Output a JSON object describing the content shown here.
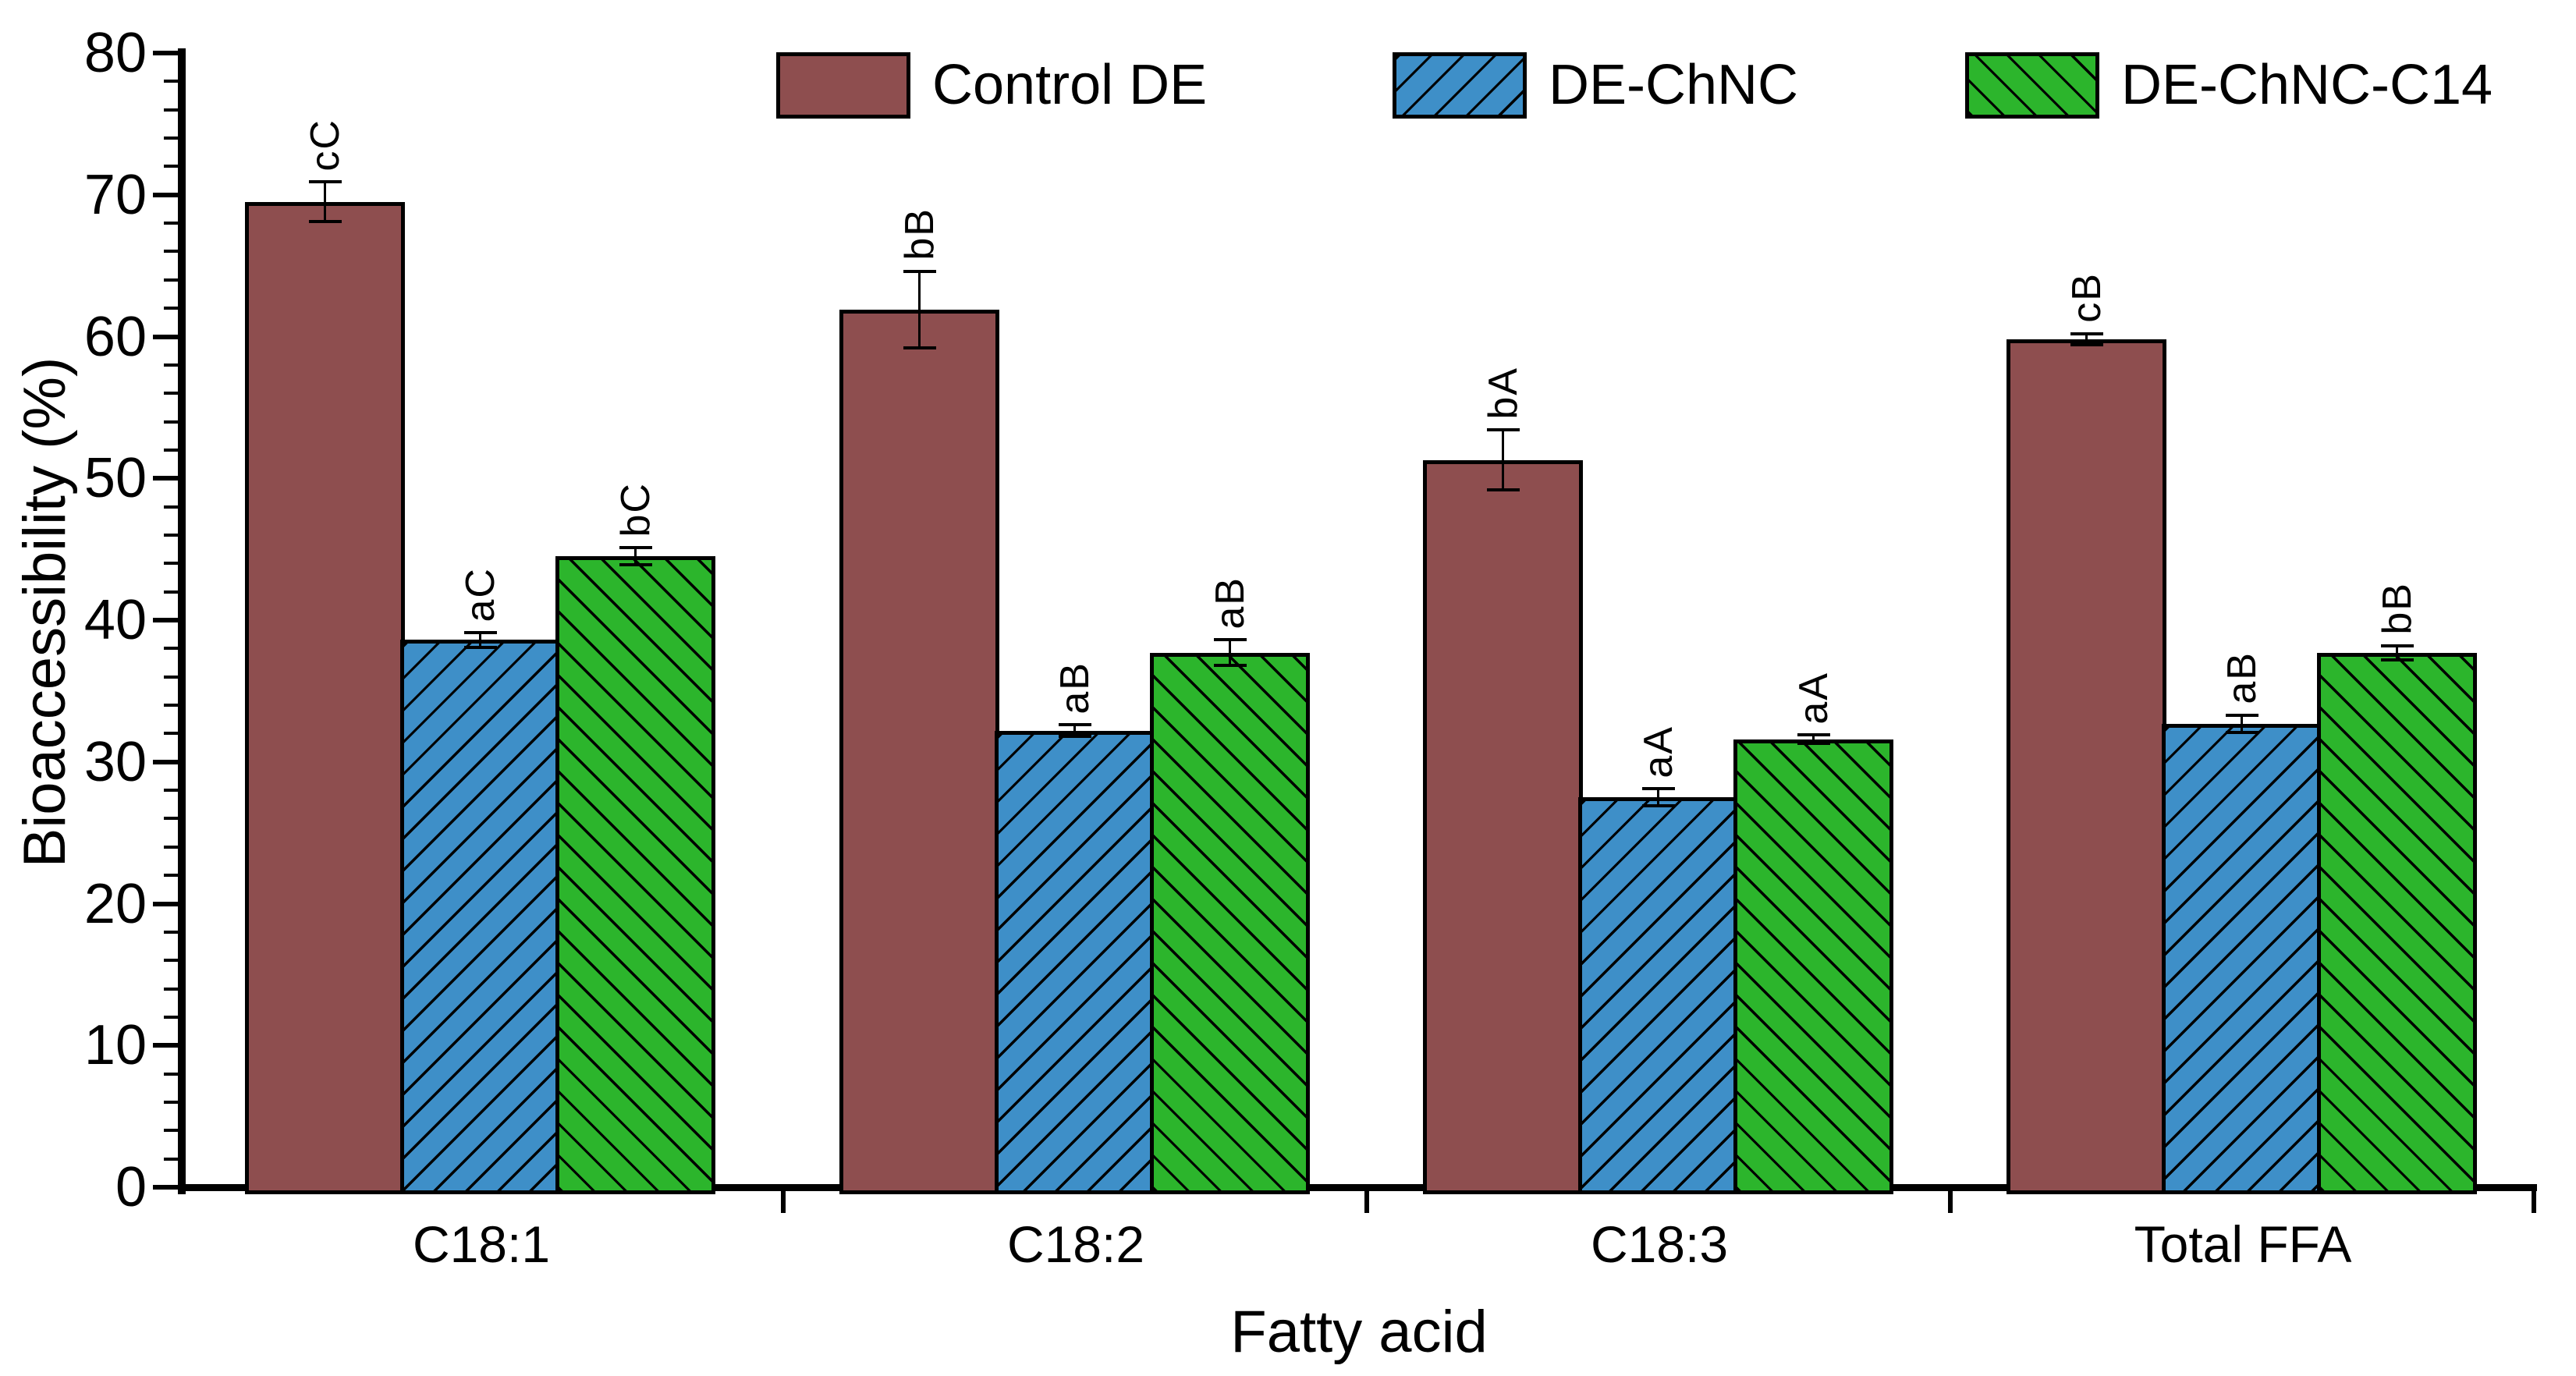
{
  "chart_data": {
    "type": "bar",
    "title": "",
    "xlabel": "Fatty acid",
    "ylabel": "Bioaccessibility (%)",
    "ylim": [
      0,
      80
    ],
    "y_major_step": 10,
    "y_minor_step": 2,
    "y_tick_labels": [
      "0",
      "10",
      "20",
      "30",
      "40",
      "50",
      "60",
      "70",
      "80"
    ],
    "grid": false,
    "legend_position": "top",
    "categories": [
      "C18:1",
      "C18:2",
      "C18:3",
      "Total FFA"
    ],
    "series": [
      {
        "name": "Control DE",
        "color": "#8E4E4F",
        "hatch": "none",
        "values": [
          69.5,
          61.9,
          51.3,
          59.8
        ],
        "errors": [
          1.4,
          2.7,
          2.1,
          0.4
        ],
        "sig_labels": [
          "cC",
          "bB",
          "bA",
          "cB"
        ]
      },
      {
        "name": "DE-ChNC",
        "color": "#3E8FC8",
        "hatch": "forward-slash",
        "values": [
          38.6,
          32.2,
          27.5,
          32.7
        ],
        "errors": [
          0.5,
          0.4,
          0.6,
          0.6
        ],
        "sig_labels": [
          "aC",
          "aB",
          "aA",
          "aB"
        ]
      },
      {
        "name": "DE-ChNC-C14",
        "color": "#2CB52C",
        "hatch": "back-slash",
        "values": [
          44.5,
          37.7,
          31.6,
          37.7
        ],
        "errors": [
          0.6,
          0.9,
          0.3,
          0.5
        ],
        "sig_labels": [
          "bC",
          "aB",
          "aA",
          "bB"
        ]
      }
    ]
  },
  "colors": {
    "axis": "#000000",
    "text": "#000000",
    "background": "#FFFFFF"
  }
}
